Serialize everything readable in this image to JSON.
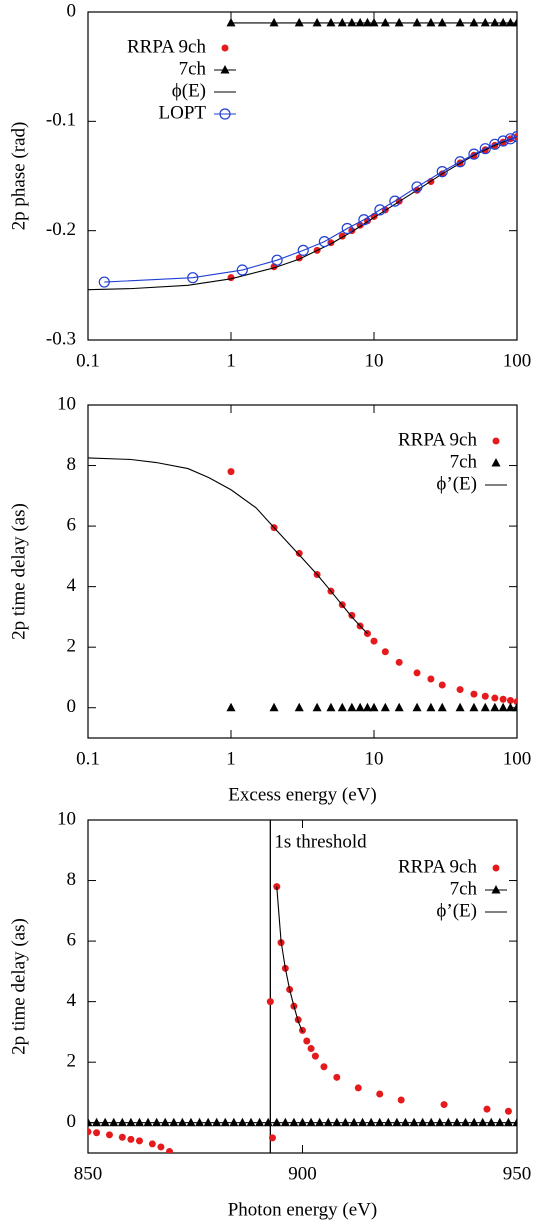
{
  "chart_data": [
    {
      "type": "line",
      "ylabel": "2p phase (rad)",
      "xscale": "log",
      "xlim": [
        0.1,
        100
      ],
      "xticks": [
        0.1,
        1,
        10,
        100
      ],
      "ylim": [
        -0.3,
        0
      ],
      "yticks": [
        0,
        -0.1,
        -0.2,
        -0.3
      ],
      "legend": "top-left",
      "series": [
        {
          "name": "RRPA 9ch",
          "color": "#e41a1c",
          "marker": "dot",
          "line": false,
          "x": [
            1,
            2,
            3,
            4,
            5,
            6,
            7,
            8,
            9,
            10,
            12,
            15,
            20,
            25,
            30,
            40,
            50,
            60,
            70,
            80,
            90,
            100
          ],
          "values": [
            -0.243,
            -0.233,
            -0.225,
            -0.218,
            -0.211,
            -0.205,
            -0.2,
            -0.195,
            -0.191,
            -0.187,
            -0.181,
            -0.173,
            -0.163,
            -0.155,
            -0.148,
            -0.138,
            -0.131,
            -0.126,
            -0.122,
            -0.119,
            -0.116,
            -0.114
          ]
        },
        {
          "name": "7ch",
          "color": "#000000",
          "marker": "triangle",
          "line": true,
          "x": [
            1,
            2,
            3,
            4,
            5,
            6,
            7,
            8,
            9,
            10,
            12,
            15,
            20,
            25,
            30,
            40,
            50,
            60,
            70,
            80,
            90,
            100
          ],
          "values": [
            -0.01,
            -0.01,
            -0.01,
            -0.01,
            -0.01,
            -0.01,
            -0.01,
            -0.01,
            -0.01,
            -0.01,
            -0.01,
            -0.01,
            -0.01,
            -0.01,
            -0.01,
            -0.01,
            -0.01,
            -0.01,
            -0.01,
            -0.01,
            -0.01,
            -0.01
          ]
        },
        {
          "name": "ϕ(E)",
          "color": "#000000",
          "marker": "none",
          "line": true,
          "x": [
            0.1,
            0.2,
            0.5,
            1,
            2,
            3,
            5,
            7,
            10,
            20,
            30,
            50,
            70,
            100
          ],
          "values": [
            -0.254,
            -0.253,
            -0.25,
            -0.244,
            -0.234,
            -0.226,
            -0.212,
            -0.201,
            -0.188,
            -0.163,
            -0.148,
            -0.131,
            -0.122,
            -0.114
          ]
        },
        {
          "name": "LOPT",
          "color": "#1f3fd6",
          "marker": "circle",
          "line": true,
          "x": [
            0.13,
            0.54,
            1.2,
            2.1,
            3.2,
            4.5,
            6.5,
            8.5,
            11,
            14,
            20,
            30,
            40,
            50,
            60,
            70,
            80,
            90,
            100
          ],
          "values": [
            -0.247,
            -0.243,
            -0.236,
            -0.227,
            -0.218,
            -0.21,
            -0.198,
            -0.19,
            -0.181,
            -0.173,
            -0.16,
            -0.146,
            -0.137,
            -0.13,
            -0.125,
            -0.121,
            -0.118,
            -0.116,
            -0.114
          ]
        }
      ]
    },
    {
      "type": "line",
      "ylabel": "2p time delay (as)",
      "xlabel": "Excess energy  (eV)",
      "xscale": "log",
      "xlim": [
        0.1,
        100
      ],
      "xticks": [
        0.1,
        1,
        10,
        100
      ],
      "ylim": [
        -1,
        10
      ],
      "yticks": [
        0,
        2,
        4,
        6,
        8,
        10
      ],
      "legend": "top-right",
      "series": [
        {
          "name": "RRPA 9ch",
          "color": "#e41a1c",
          "marker": "dot",
          "line": false,
          "x": [
            1,
            2,
            3,
            4,
            5,
            6,
            7,
            8,
            9,
            10,
            12,
            15,
            20,
            25,
            30,
            40,
            50,
            60,
            70,
            80,
            90,
            100
          ],
          "values": [
            7.8,
            5.95,
            5.1,
            4.4,
            3.85,
            3.4,
            3.05,
            2.7,
            2.45,
            2.2,
            1.85,
            1.5,
            1.15,
            0.95,
            0.75,
            0.6,
            0.45,
            0.38,
            0.32,
            0.28,
            0.24,
            0.2
          ]
        },
        {
          "name": "7ch",
          "color": "#000000",
          "marker": "triangle",
          "line": false,
          "x": [
            1,
            2,
            3,
            4,
            5,
            6,
            7,
            8,
            9,
            10,
            12,
            15,
            20,
            25,
            30,
            40,
            50,
            60,
            70,
            80,
            90,
            100
          ],
          "values": [
            0,
            0,
            0,
            0,
            0,
            0,
            0,
            0,
            0,
            0,
            0,
            0,
            0,
            0,
            0,
            0,
            0,
            0,
            0,
            0,
            0,
            0
          ]
        },
        {
          "name": "ϕ’(E)",
          "color": "#000000",
          "marker": "none",
          "line": true,
          "x": [
            0.1,
            0.2,
            0.3,
            0.5,
            0.7,
            1,
            1.5,
            2,
            3,
            4,
            5,
            7,
            8,
            9
          ],
          "values": [
            8.25,
            8.2,
            8.1,
            7.9,
            7.6,
            7.2,
            6.6,
            5.95,
            5.05,
            4.4,
            3.85,
            3.0,
            2.7,
            2.45
          ]
        }
      ]
    },
    {
      "type": "line",
      "ylabel": "2p time delay (as)",
      "xlabel": "Photon  energy  (eV)",
      "xscale": "linear",
      "xlim": [
        850,
        950
      ],
      "xticks": [
        850,
        900,
        950
      ],
      "ylim": [
        -1,
        10
      ],
      "yticks": [
        0,
        2,
        4,
        6,
        8,
        10
      ],
      "legend": "top-right",
      "threshold": {
        "x": 892.5,
        "label": "1s threshold"
      },
      "series": [
        {
          "name": "RRPA 9ch",
          "color": "#e41a1c",
          "marker": "dot",
          "line": false,
          "x": [
            850,
            852,
            855,
            858,
            860,
            862,
            865,
            867,
            869,
            892.5,
            893,
            894,
            895,
            896,
            897,
            898,
            899,
            900,
            901,
            902,
            903,
            905,
            908,
            913,
            918,
            923,
            933,
            943,
            948
          ],
          "values": [
            -0.3,
            -0.33,
            -0.4,
            -0.48,
            -0.55,
            -0.6,
            -0.7,
            -0.8,
            -0.95,
            4.0,
            -0.5,
            7.8,
            5.95,
            5.1,
            4.4,
            3.85,
            3.4,
            3.05,
            2.7,
            2.45,
            2.2,
            1.85,
            1.5,
            1.15,
            0.95,
            0.75,
            0.6,
            0.45,
            0.38
          ]
        },
        {
          "name": "7ch",
          "color": "#000000",
          "marker": "triangle",
          "line": true,
          "x": [
            850,
            852,
            854,
            856,
            858,
            860,
            862,
            864,
            866,
            868,
            870,
            872,
            874,
            876,
            878,
            880,
            882,
            884,
            886,
            888,
            890,
            892,
            894,
            896,
            898,
            900,
            902,
            904,
            906,
            908,
            910,
            912,
            914,
            916,
            918,
            920,
            922,
            924,
            926,
            928,
            930,
            932,
            934,
            936,
            938,
            940,
            942,
            944,
            946,
            948,
            950
          ],
          "values": [
            0,
            0,
            0,
            0,
            0,
            0,
            0,
            0,
            0,
            0,
            0,
            0,
            0,
            0,
            0,
            0,
            0,
            0,
            0,
            0,
            0,
            0,
            0,
            0,
            0,
            0,
            0,
            0,
            0,
            0,
            0,
            0,
            0,
            0,
            0,
            0,
            0,
            0,
            0,
            0,
            0,
            0,
            0,
            0,
            0,
            0,
            0,
            0,
            0,
            0,
            0
          ]
        },
        {
          "name": "ϕ’(E)",
          "color": "#000000",
          "marker": "none",
          "line": true,
          "x": [
            894,
            895,
            896,
            897,
            898,
            899,
            900
          ],
          "values": [
            7.8,
            6.0,
            5.1,
            4.4,
            3.85,
            3.35,
            3.0
          ]
        }
      ]
    }
  ]
}
